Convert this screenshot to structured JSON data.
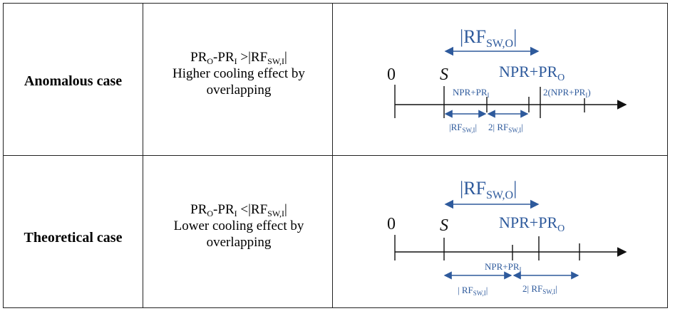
{
  "rows": [
    {
      "case_label": "Anomalous case",
      "condition": {
        "expr_a": "PR",
        "expr_a_sub": "O",
        "expr_b": "-PR",
        "expr_b_sub": "I",
        "op": " >|RF",
        "rf_sub": "SW,I",
        "close": "|",
        "line2": "Higher cooling effect by",
        "line3": "overlapping"
      },
      "diagram": {
        "top_label": "|RF",
        "top_label_sub": "SW,O",
        "top_label_close": "|",
        "zero": "0",
        "s": "S",
        "npr_pro": "NPR+PR",
        "npr_pro_sub": "O",
        "npr_pri": "NPR+PR",
        "npr_pri_sub": "I",
        "two_npr_pri": "2(NPR+PR",
        "two_npr_pri_sub": "I",
        "two_npr_pri_close": ")",
        "rf_swi_1": "|RF",
        "rf_swi_1_sub": "SW,I",
        "rf_swi_1_close": "|",
        "rf_swi_2": "2| RF",
        "rf_swi_2_sub": "SW,I",
        "rf_swi_2_close": "|"
      }
    },
    {
      "case_label": "Theoretical case",
      "condition": {
        "expr_a": "PR",
        "expr_a_sub": "O",
        "expr_b": "-PR",
        "expr_b_sub": "I",
        "op": " <|RF",
        "rf_sub": "SW,I",
        "close": "|",
        "line2": "Lower cooling effect by",
        "line3": "overlapping"
      },
      "diagram": {
        "top_label": "|RF",
        "top_label_sub": "SW,O",
        "top_label_close": "|",
        "zero": "0",
        "s": "S",
        "npr_pro": "NPR+PR",
        "npr_pro_sub": "O",
        "npr_pri": "NPR+PR",
        "npr_pri_sub": "I",
        "rf_swi_1": "| RF",
        "rf_swi_1_sub": "SW,I",
        "rf_swi_1_close": "|",
        "rf_swi_2": "2| RF",
        "rf_swi_2_sub": "SW,I",
        "rf_swi_2_close": "|"
      }
    }
  ],
  "colors": {
    "accent_blue": "#2e5a9c",
    "line": "#111111"
  }
}
